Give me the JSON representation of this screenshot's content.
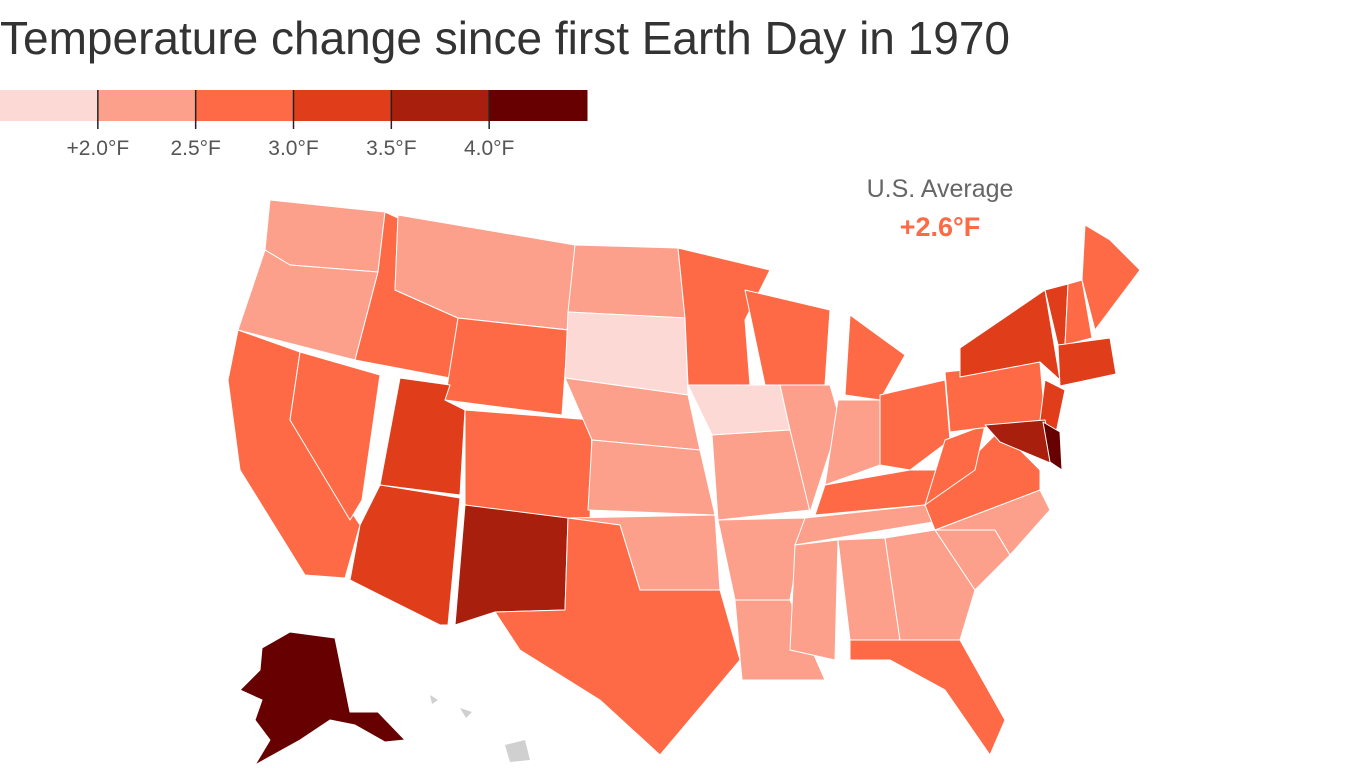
{
  "title": "Temperature change since first Earth Day in 1970",
  "legend": {
    "colors": [
      "#fdd9d6",
      "#fca08c",
      "#fd6a45",
      "#e03d1b",
      "#a81f0e",
      "#670000"
    ],
    "ticks": [
      "+2.0°F",
      "2.5°F",
      "3.0°F",
      "3.5°F",
      "4.0°F"
    ]
  },
  "annotation": {
    "label": "U.S. Average",
    "value": "+2.6°F"
  }
}
